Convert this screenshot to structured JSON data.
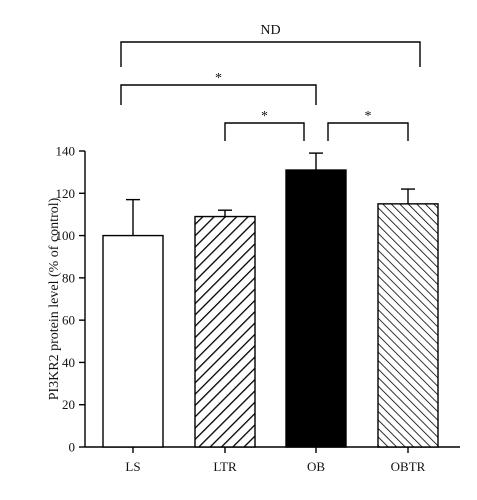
{
  "chart_data": {
    "type": "bar",
    "categories": [
      "LS",
      "LTR",
      "OB",
      "OBTR"
    ],
    "values": [
      100,
      109,
      131,
      115
    ],
    "errors": [
      17,
      3,
      8,
      7
    ],
    "fills": [
      "white",
      "hatch-backslash",
      "solid-black",
      "hatch-slash"
    ],
    "ylabel": "PI3KR2 protein level (% of control)",
    "ylim": [
      0,
      140
    ],
    "yticks": [
      0,
      20,
      40,
      60,
      80,
      100,
      120,
      140
    ],
    "grid": false,
    "comparisons": [
      {
        "from": "LS",
        "to": "OBTR",
        "label": "ND"
      },
      {
        "from": "LS",
        "to": "OB",
        "label": "*"
      },
      {
        "from": "LTR",
        "to": "OB",
        "label": "*"
      },
      {
        "from": "OB",
        "to": "OBTR",
        "label": "*"
      }
    ]
  },
  "colors": {
    "ink": "#000000",
    "background": "#ffffff"
  }
}
